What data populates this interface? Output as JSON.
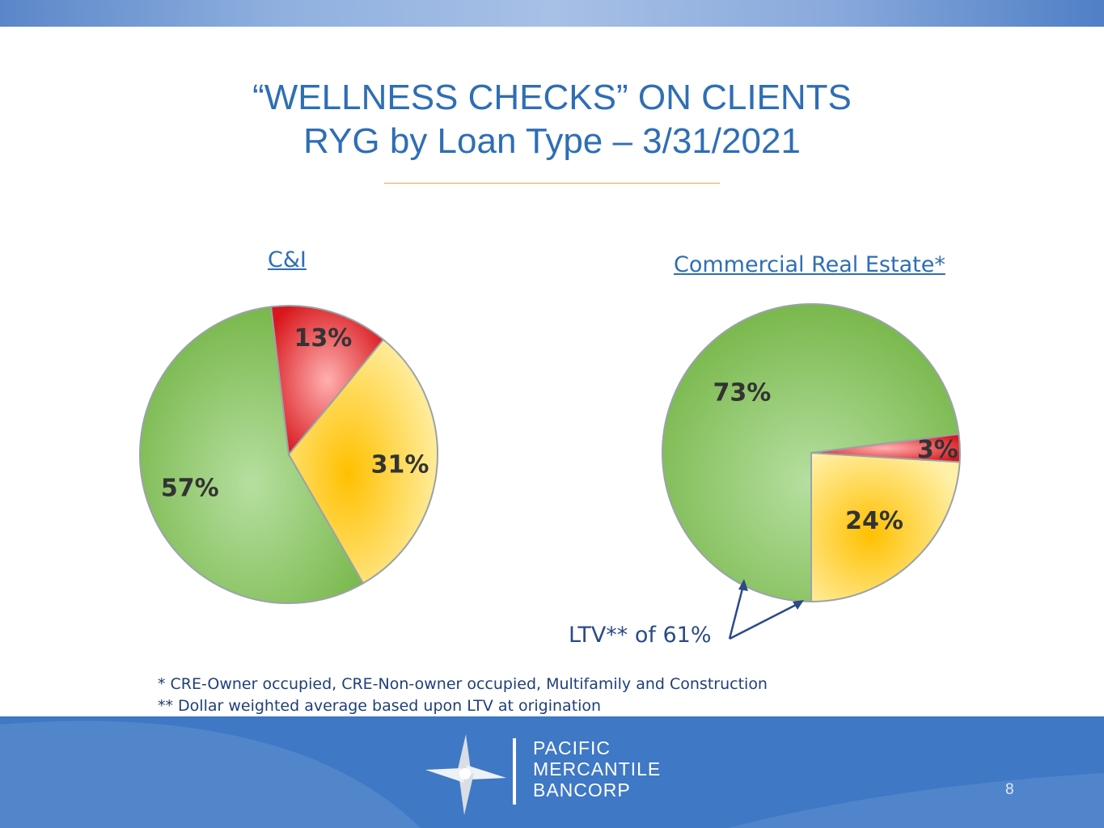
{
  "title_line1": "“WELLNESS CHECKS” ON CLIENTS",
  "title_line2": "RYG by Loan Type – 3/31/2021",
  "colors": {
    "green": "#8cc665",
    "yellow": "#ffc000",
    "red": "#e8262b",
    "title": "#2e6eb5"
  },
  "chart_data": [
    {
      "type": "pie",
      "title": "C&I",
      "categories": [
        "Green",
        "Yellow",
        "Red"
      ],
      "values": [
        57,
        31,
        13
      ],
      "labels": [
        "57%",
        "31%",
        "13%"
      ]
    },
    {
      "type": "pie",
      "title": "Commercial Real Estate*",
      "categories": [
        "Green",
        "Yellow",
        "Red"
      ],
      "values": [
        73,
        24,
        3
      ],
      "labels": [
        "73%",
        "24%",
        "3%"
      ],
      "annotation": "LTV** of 61%"
    }
  ],
  "footnotes": [
    "*   CRE-Owner occupied, CRE-Non-owner occupied, Multifamily and Construction",
    "** Dollar weighted average based upon LTV at origination"
  ],
  "logo": {
    "line1": "PACIFIC",
    "line2": "MERCANTILE",
    "line3": "BANCORP",
    "icon": "pinwheel-logo-icon"
  },
  "page_number": "8"
}
